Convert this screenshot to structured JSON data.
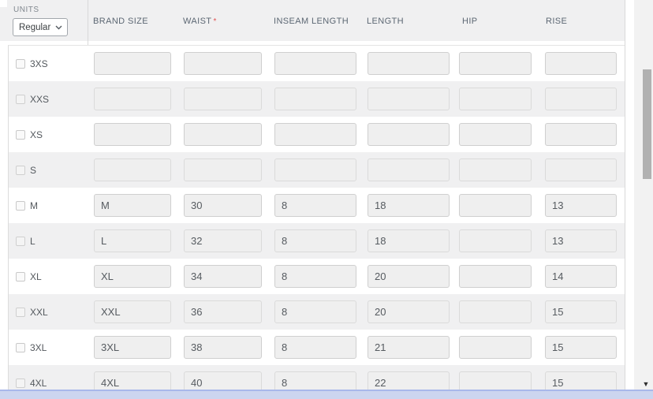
{
  "units": {
    "label": "UNITS",
    "value": "Regular"
  },
  "table": {
    "columns": [
      {
        "id": "brand-size",
        "label": "BRAND SIZE",
        "required": false
      },
      {
        "id": "waist",
        "label": "WAIST",
        "required": true
      },
      {
        "id": "inseam-length",
        "label": "INSEAM LENGTH",
        "required": false
      },
      {
        "id": "length",
        "label": "LENGTH",
        "required": false
      },
      {
        "id": "hip",
        "label": "HIP",
        "required": false
      },
      {
        "id": "rise",
        "label": "RISE",
        "required": false
      }
    ],
    "rows": [
      {
        "size": "3XS",
        "checked": false,
        "values": [
          "",
          "",
          "",
          "",
          "",
          ""
        ]
      },
      {
        "size": "XXS",
        "checked": false,
        "values": [
          "",
          "",
          "",
          "",
          "",
          ""
        ]
      },
      {
        "size": "XS",
        "checked": false,
        "values": [
          "",
          "",
          "",
          "",
          "",
          ""
        ]
      },
      {
        "size": "S",
        "checked": false,
        "values": [
          "",
          "",
          "",
          "",
          "",
          ""
        ]
      },
      {
        "size": "M",
        "checked": false,
        "values": [
          "M",
          "30",
          "8",
          "18",
          "",
          "13"
        ]
      },
      {
        "size": "L",
        "checked": false,
        "values": [
          "L",
          "32",
          "8",
          "18",
          "",
          "13"
        ]
      },
      {
        "size": "XL",
        "checked": false,
        "values": [
          "XL",
          "34",
          "8",
          "20",
          "",
          "14"
        ]
      },
      {
        "size": "XXL",
        "checked": false,
        "values": [
          "XXL",
          "36",
          "8",
          "20",
          "",
          "15"
        ]
      },
      {
        "size": "3XL",
        "checked": false,
        "values": [
          "3XL",
          "38",
          "8",
          "21",
          "",
          "15"
        ]
      },
      {
        "size": "4XL",
        "checked": false,
        "values": [
          "4XL",
          "40",
          "8",
          "22",
          "",
          "15"
        ]
      }
    ]
  },
  "scroll": {
    "down_arrow_glyph": "▼"
  },
  "colors": {
    "required_asterisk": "#e05252",
    "row_stripe": "#f0f0f1",
    "scrollbar_thumb": "#b1b1b1",
    "horizontal_scrollbar_fill": "#ccd5ef",
    "horizontal_scrollbar_border": "#a9b8ea"
  }
}
